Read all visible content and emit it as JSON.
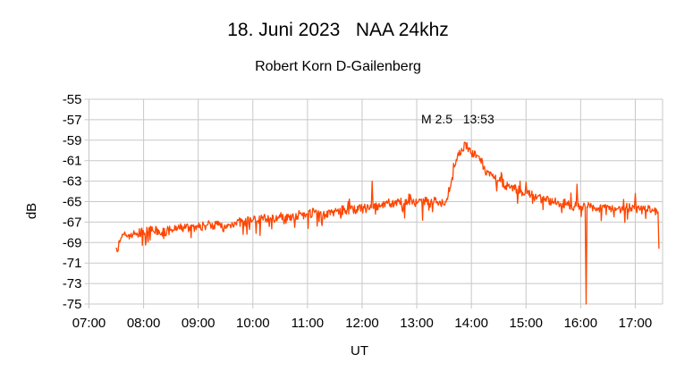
{
  "chart_data": {
    "type": "line",
    "title": "18. Juni 2023   NAA 24khz",
    "subtitle": "Robert Korn D-Gailenberg",
    "xlabel": "UT",
    "ylabel": "dB",
    "xlim": [
      "07:00",
      "17:30"
    ],
    "ylim": [
      -75,
      -55
    ],
    "x_ticks": [
      "07:00",
      "08:00",
      "09:00",
      "10:00",
      "11:00",
      "12:00",
      "13:00",
      "14:00",
      "15:00",
      "16:00",
      "17:00"
    ],
    "y_ticks": [
      -55,
      -57,
      -59,
      -61,
      -63,
      -65,
      -67,
      -69,
      -71,
      -73,
      -75
    ],
    "grid": true,
    "legend": "none",
    "annotation": {
      "text": "M 2.5   13:53",
      "x": "13:53"
    },
    "series": [
      {
        "color": "#ff4500",
        "points": [
          [
            "07:30",
            -69.5
          ],
          [
            "07:31",
            -69.9
          ],
          [
            "07:33",
            -68.8
          ],
          [
            "07:36",
            -68.5
          ],
          [
            "07:40",
            -68.3
          ],
          [
            "07:50",
            -68.2
          ],
          [
            "08:00",
            -68.0
          ],
          [
            "08:10",
            -67.8
          ],
          [
            "08:20",
            -68.0
          ],
          [
            "08:30",
            -67.8
          ],
          [
            "08:40",
            -67.6
          ],
          [
            "08:50",
            -67.5
          ],
          [
            "09:00",
            -67.5
          ],
          [
            "09:10",
            -67.3
          ],
          [
            "09:20",
            -67.2
          ],
          [
            "09:30",
            -67.6
          ],
          [
            "09:40",
            -67.0
          ],
          [
            "09:50",
            -67.0
          ],
          [
            "10:00",
            -66.8
          ],
          [
            "10:10",
            -66.6
          ],
          [
            "10:20",
            -66.7
          ],
          [
            "10:30",
            -66.5
          ],
          [
            "10:40",
            -66.4
          ],
          [
            "10:50",
            -66.3
          ],
          [
            "11:00",
            -66.2
          ],
          [
            "11:10",
            -66.0
          ],
          [
            "11:20",
            -66.3
          ],
          [
            "11:30",
            -66.0
          ],
          [
            "11:40",
            -65.8
          ],
          [
            "11:50",
            -65.8
          ],
          [
            "12:00",
            -65.7
          ],
          [
            "12:10",
            -65.6
          ],
          [
            "12:11",
            -63.0
          ],
          [
            "12:12",
            -65.6
          ],
          [
            "12:20",
            -65.5
          ],
          [
            "12:30",
            -65.3
          ],
          [
            "12:40",
            -65.0
          ],
          [
            "12:50",
            -65.0
          ],
          [
            "13:00",
            -65.2
          ],
          [
            "13:10",
            -65.0
          ],
          [
            "13:20",
            -64.8
          ],
          [
            "13:30",
            -65.3
          ],
          [
            "13:33",
            -64.7
          ],
          [
            "13:38",
            -63.0
          ],
          [
            "13:42",
            -61.5
          ],
          [
            "13:46",
            -60.5
          ],
          [
            "13:50",
            -60.0
          ],
          [
            "13:53",
            -59.2
          ],
          [
            "14:00",
            -60.3
          ],
          [
            "14:10",
            -60.8
          ],
          [
            "14:15",
            -62.0
          ],
          [
            "14:20",
            -62.5
          ],
          [
            "14:30",
            -63.0
          ],
          [
            "14:40",
            -63.5
          ],
          [
            "14:50",
            -63.8
          ],
          [
            "14:59",
            -64.2
          ],
          [
            "15:00",
            -63.1
          ],
          [
            "15:01",
            -64.2
          ],
          [
            "15:10",
            -64.5
          ],
          [
            "15:20",
            -64.8
          ],
          [
            "15:30",
            -65.0
          ],
          [
            "15:40",
            -65.2
          ],
          [
            "15:50",
            -65.4
          ],
          [
            "15:55",
            -65.4
          ],
          [
            "15:56",
            -63.3
          ],
          [
            "15:57",
            -65.5
          ],
          [
            "16:05",
            -65.5
          ],
          [
            "16:06",
            -75.0
          ],
          [
            "16:07",
            -65.5
          ],
          [
            "16:20",
            -65.6
          ],
          [
            "16:30",
            -65.5
          ],
          [
            "16:40",
            -65.7
          ],
          [
            "16:50",
            -65.6
          ],
          [
            "16:59",
            -65.7
          ],
          [
            "17:00",
            -64.2
          ],
          [
            "17:01",
            -65.8
          ],
          [
            "17:10",
            -65.8
          ],
          [
            "17:20",
            -65.9
          ],
          [
            "17:25",
            -66.0
          ],
          [
            "17:26",
            -69.6
          ]
        ]
      }
    ]
  }
}
